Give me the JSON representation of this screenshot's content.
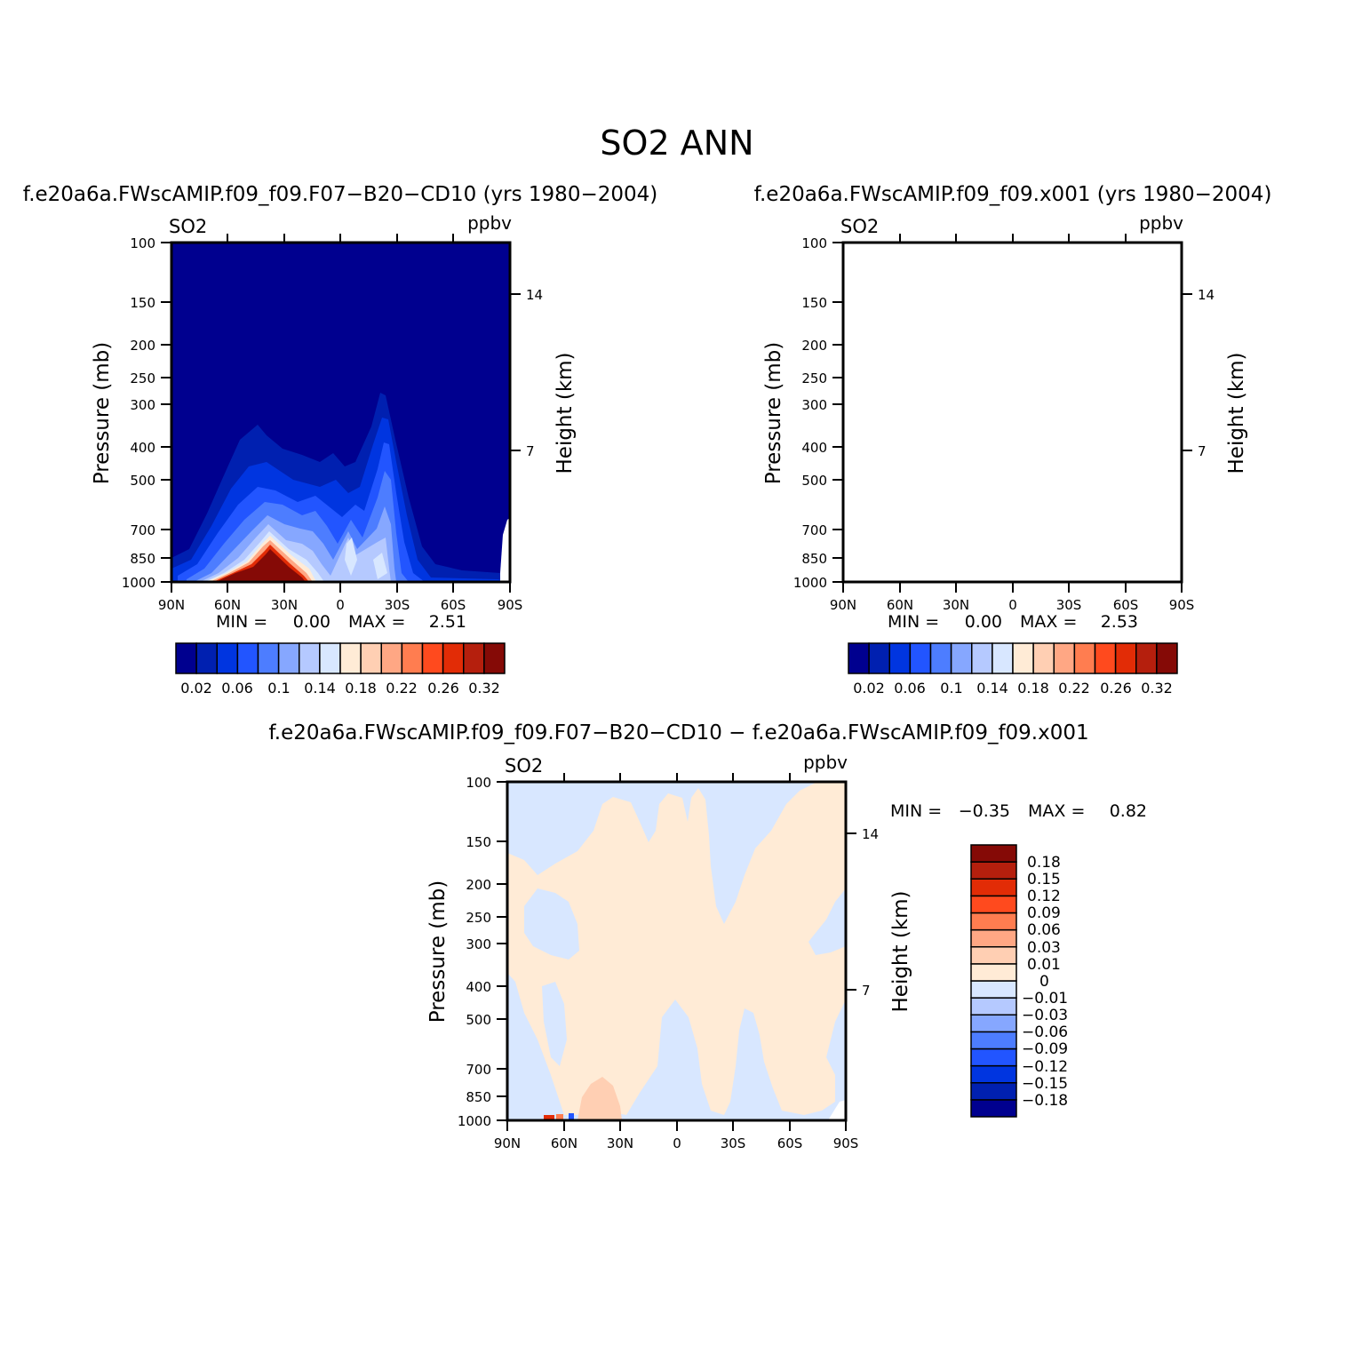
{
  "figure": {
    "title": "SO2 ANN"
  },
  "colors": {
    "abs_scale": [
      "#00008f",
      "#0020b0",
      "#0035e0",
      "#2255ff",
      "#4d7dff",
      "#86a7ff",
      "#b5c9ff",
      "#d8e7ff",
      "#ffebd6",
      "#ffcfb3",
      "#ffa784",
      "#ff7d50",
      "#ff4a1e",
      "#e22c06",
      "#b51f0d",
      "#850a06"
    ],
    "diff_scale": [
      "#00008f",
      "#0020b0",
      "#0035e0",
      "#2255ff",
      "#4d7dff",
      "#86a7ff",
      "#b5c9ff",
      "#d8e7ff",
      "#ffebd6",
      "#ffcfb3",
      "#ffa784",
      "#ff7d50",
      "#ff4a1e",
      "#e22c06",
      "#b51f0d",
      "#850a06"
    ]
  },
  "chart_data": [
    {
      "type": "heatmap",
      "title": "f.e20a6a.FWscAMIP.f09_f09.F07-B20-CD10 (yrs 1980-2004)",
      "left_label": "SO2",
      "right_label": "ppbv",
      "ylabel": "Pressure (mb)",
      "y2label": "Height (km)",
      "x_ticks": [
        "90N",
        "60N",
        "30N",
        "0",
        "30S",
        "60S",
        "90S"
      ],
      "y_ticks": [
        100,
        150,
        200,
        250,
        300,
        400,
        500,
        700,
        850,
        1000
      ],
      "y_scale": "log",
      "ylim": [
        1000,
        100
      ],
      "y2_ticks": [
        14,
        7
      ],
      "min_label": "MIN =",
      "min_value": "0.00",
      "max_label": "MAX =",
      "max_value": "2.51",
      "colorbar_labels": [
        "0.02",
        "0.06",
        "0.1",
        "0.14",
        "0.18",
        "0.22",
        "0.26",
        "0.32"
      ],
      "colorbar_orientation": "horizontal"
    },
    {
      "type": "heatmap",
      "title": "f.e20a6a.FWscAMIP.f09_f09.x001 (yrs 1980-2004)",
      "left_label": "SO2",
      "right_label": "ppbv",
      "ylabel": "Pressure (mb)",
      "y2label": "Height (km)",
      "x_ticks": [
        "90N",
        "60N",
        "30N",
        "0",
        "30S",
        "60S",
        "90S"
      ],
      "y_ticks": [
        100,
        150,
        200,
        250,
        300,
        400,
        500,
        700,
        850,
        1000
      ],
      "y_scale": "log",
      "ylim": [
        1000,
        100
      ],
      "y2_ticks": [
        14,
        7
      ],
      "min_label": "MIN =",
      "min_value": "0.00",
      "max_label": "MAX =",
      "max_value": "2.53",
      "colorbar_labels": [
        "0.02",
        "0.06",
        "0.1",
        "0.14",
        "0.18",
        "0.22",
        "0.26",
        "0.32"
      ],
      "colorbar_orientation": "horizontal"
    },
    {
      "type": "heatmap",
      "title": "f.e20a6a.FWscAMIP.f09_f09.F07-B20-CD10 - f.e20a6a.FWscAMIP.f09_f09.x001",
      "left_label": "SO2",
      "right_label": "ppbv",
      "ylabel": "Pressure (mb)",
      "y2label": "Height (km)",
      "x_ticks": [
        "90N",
        "60N",
        "30N",
        "0",
        "30S",
        "60S",
        "90S"
      ],
      "y_ticks": [
        100,
        150,
        200,
        250,
        300,
        400,
        500,
        700,
        850,
        1000
      ],
      "y_scale": "log",
      "ylim": [
        1000,
        100
      ],
      "y2_ticks": [
        14,
        7
      ],
      "min_label": "MIN =",
      "min_value": "-0.35",
      "max_label": "MAX =",
      "max_value": "0.82",
      "colorbar_labels": [
        "0.18",
        "0.15",
        "0.12",
        "0.09",
        "0.06",
        "0.03",
        "0.01",
        "0",
        "-0.01",
        "-0.03",
        "-0.06",
        "-0.09",
        "-0.12",
        "-0.15",
        "-0.18"
      ],
      "colorbar_orientation": "vertical"
    }
  ]
}
